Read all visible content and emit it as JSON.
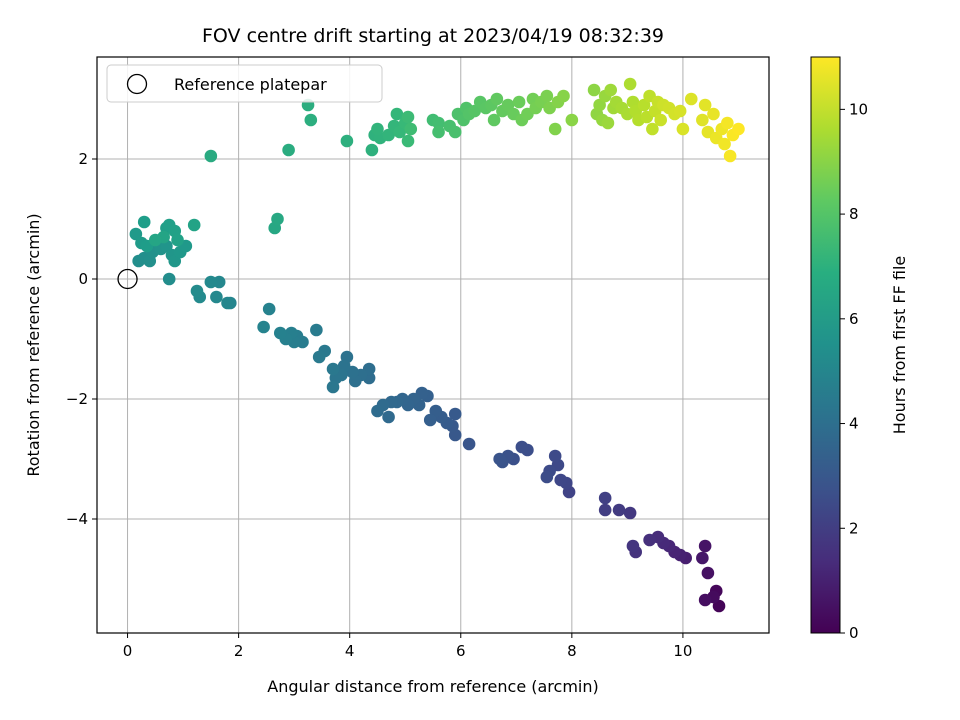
{
  "chart_data": {
    "type": "scatter",
    "title": "FOV centre drift starting at 2023/04/19 08:32:39",
    "xlabel": "Angular distance from reference (arcmin)",
    "ylabel": "Rotation from reference (arcmin)",
    "xlim": [
      -0.55,
      11.55
    ],
    "ylim": [
      -5.9,
      3.7
    ],
    "xticks": [
      0,
      2,
      4,
      6,
      8,
      10
    ],
    "yticks": [
      -4,
      -2,
      0,
      2
    ],
    "xtick_labels": [
      "0",
      "2",
      "4",
      "6",
      "8",
      "10"
    ],
    "ytick_labels": [
      "−4",
      "−2",
      "0",
      "2"
    ],
    "grid": true,
    "legend": {
      "position": "top-left",
      "entries": [
        "Reference platepar"
      ]
    },
    "reference_point": {
      "x": 0,
      "y": 0
    },
    "colorbar": {
      "label": "Hours from first FF file",
      "range": [
        0,
        11
      ],
      "ticks": [
        0,
        2,
        4,
        6,
        8,
        10
      ],
      "tick_labels": [
        "0",
        "2",
        "4",
        "6",
        "8",
        "10"
      ],
      "colormap": "viridis"
    },
    "points": [
      {
        "x": 10.65,
        "y": -5.45,
        "t": 0.1
      },
      {
        "x": 10.6,
        "y": -5.2,
        "t": 0.2
      },
      {
        "x": 10.55,
        "y": -5.3,
        "t": 0.3
      },
      {
        "x": 10.4,
        "y": -5.35,
        "t": 0.4
      },
      {
        "x": 10.45,
        "y": -4.9,
        "t": 0.5
      },
      {
        "x": 10.4,
        "y": -4.45,
        "t": 0.6
      },
      {
        "x": 10.35,
        "y": -4.65,
        "t": 0.7
      },
      {
        "x": 10.05,
        "y": -4.65,
        "t": 0.9
      },
      {
        "x": 9.95,
        "y": -4.6,
        "t": 1.0
      },
      {
        "x": 9.85,
        "y": -4.55,
        "t": 1.1
      },
      {
        "x": 9.75,
        "y": -4.45,
        "t": 1.2
      },
      {
        "x": 9.65,
        "y": -4.4,
        "t": 1.3
      },
      {
        "x": 9.55,
        "y": -4.3,
        "t": 1.4
      },
      {
        "x": 9.4,
        "y": -4.35,
        "t": 1.5
      },
      {
        "x": 9.15,
        "y": -4.55,
        "t": 1.6
      },
      {
        "x": 9.1,
        "y": -4.45,
        "t": 1.7
      },
      {
        "x": 9.05,
        "y": -3.9,
        "t": 1.8
      },
      {
        "x": 8.85,
        "y": -3.85,
        "t": 1.9
      },
      {
        "x": 8.6,
        "y": -3.85,
        "t": 2.0
      },
      {
        "x": 8.6,
        "y": -3.65,
        "t": 2.1
      },
      {
        "x": 7.95,
        "y": -3.55,
        "t": 2.2
      },
      {
        "x": 7.9,
        "y": -3.4,
        "t": 2.3
      },
      {
        "x": 7.8,
        "y": -3.35,
        "t": 2.35
      },
      {
        "x": 7.75,
        "y": -3.1,
        "t": 2.4
      },
      {
        "x": 7.7,
        "y": -2.95,
        "t": 2.45
      },
      {
        "x": 7.6,
        "y": -3.2,
        "t": 2.5
      },
      {
        "x": 7.55,
        "y": -3.3,
        "t": 2.55
      },
      {
        "x": 7.2,
        "y": -2.85,
        "t": 2.6
      },
      {
        "x": 7.1,
        "y": -2.8,
        "t": 2.65
      },
      {
        "x": 6.95,
        "y": -3.0,
        "t": 2.7
      },
      {
        "x": 6.85,
        "y": -2.95,
        "t": 2.75
      },
      {
        "x": 6.75,
        "y": -3.05,
        "t": 2.8
      },
      {
        "x": 6.7,
        "y": -3.0,
        "t": 2.85
      },
      {
        "x": 6.15,
        "y": -2.75,
        "t": 2.9
      },
      {
        "x": 5.9,
        "y": -2.6,
        "t": 3.0
      },
      {
        "x": 5.85,
        "y": -2.45,
        "t": 3.05
      },
      {
        "x": 5.9,
        "y": -2.25,
        "t": 3.1
      },
      {
        "x": 5.75,
        "y": -2.4,
        "t": 3.15
      },
      {
        "x": 5.65,
        "y": -2.3,
        "t": 3.2
      },
      {
        "x": 5.55,
        "y": -2.2,
        "t": 3.25
      },
      {
        "x": 5.45,
        "y": -2.35,
        "t": 3.3
      },
      {
        "x": 5.4,
        "y": -1.95,
        "t": 3.35
      },
      {
        "x": 5.3,
        "y": -1.9,
        "t": 3.4
      },
      {
        "x": 5.25,
        "y": -2.1,
        "t": 3.45
      },
      {
        "x": 5.15,
        "y": -2.0,
        "t": 3.5
      },
      {
        "x": 5.05,
        "y": -2.1,
        "t": 3.55
      },
      {
        "x": 4.95,
        "y": -2.0,
        "t": 3.6
      },
      {
        "x": 4.85,
        "y": -2.05,
        "t": 3.65
      },
      {
        "x": 4.75,
        "y": -2.05,
        "t": 3.7
      },
      {
        "x": 4.7,
        "y": -2.3,
        "t": 3.75
      },
      {
        "x": 4.6,
        "y": -2.1,
        "t": 3.8
      },
      {
        "x": 4.5,
        "y": -2.2,
        "t": 3.85
      },
      {
        "x": 4.35,
        "y": -1.65,
        "t": 3.9
      },
      {
        "x": 4.35,
        "y": -1.5,
        "t": 3.95
      },
      {
        "x": 4.2,
        "y": -1.6,
        "t": 4.0
      },
      {
        "x": 4.1,
        "y": -1.7,
        "t": 4.05
      },
      {
        "x": 4.05,
        "y": -1.55,
        "t": 4.1
      },
      {
        "x": 3.95,
        "y": -1.3,
        "t": 4.15
      },
      {
        "x": 3.9,
        "y": -1.45,
        "t": 4.2
      },
      {
        "x": 3.85,
        "y": -1.6,
        "t": 4.25
      },
      {
        "x": 3.75,
        "y": -1.65,
        "t": 4.3
      },
      {
        "x": 3.7,
        "y": -1.8,
        "t": 4.35
      },
      {
        "x": 3.7,
        "y": -1.5,
        "t": 4.4
      },
      {
        "x": 3.55,
        "y": -1.2,
        "t": 4.45
      },
      {
        "x": 3.45,
        "y": -1.3,
        "t": 4.5
      },
      {
        "x": 3.4,
        "y": -0.85,
        "t": 4.55
      },
      {
        "x": 3.15,
        "y": -1.05,
        "t": 4.6
      },
      {
        "x": 3.05,
        "y": -0.95,
        "t": 4.65
      },
      {
        "x": 3.0,
        "y": -1.05,
        "t": 4.7
      },
      {
        "x": 2.95,
        "y": -0.9,
        "t": 4.75
      },
      {
        "x": 2.85,
        "y": -1.0,
        "t": 4.8
      },
      {
        "x": 2.75,
        "y": -0.9,
        "t": 4.85
      },
      {
        "x": 2.55,
        "y": -0.5,
        "t": 4.9
      },
      {
        "x": 2.45,
        "y": -0.8,
        "t": 4.95
      },
      {
        "x": 1.85,
        "y": -0.4,
        "t": 5.0
      },
      {
        "x": 1.8,
        "y": -0.4,
        "t": 5.05
      },
      {
        "x": 1.65,
        "y": -0.05,
        "t": 5.1
      },
      {
        "x": 1.6,
        "y": -0.3,
        "t": 5.15
      },
      {
        "x": 1.5,
        "y": -0.05,
        "t": 5.2
      },
      {
        "x": 1.3,
        "y": -0.3,
        "t": 5.25
      },
      {
        "x": 1.25,
        "y": -0.2,
        "t": 5.3
      },
      {
        "x": 0.75,
        "y": 0.0,
        "t": 5.35
      },
      {
        "x": 0.2,
        "y": 0.3,
        "t": 5.4
      },
      {
        "x": 0.3,
        "y": 0.35,
        "t": 5.45
      },
      {
        "x": 0.4,
        "y": 0.3,
        "t": 5.5
      },
      {
        "x": 0.45,
        "y": 0.45,
        "t": 5.55
      },
      {
        "x": 0.55,
        "y": 0.6,
        "t": 5.6
      },
      {
        "x": 0.6,
        "y": 0.5,
        "t": 5.65
      },
      {
        "x": 0.7,
        "y": 0.55,
        "t": 5.7
      },
      {
        "x": 0.8,
        "y": 0.4,
        "t": 5.75
      },
      {
        "x": 0.85,
        "y": 0.3,
        "t": 5.8
      },
      {
        "x": 0.95,
        "y": 0.45,
        "t": 5.85
      },
      {
        "x": 1.05,
        "y": 0.55,
        "t": 5.9
      },
      {
        "x": 0.15,
        "y": 0.75,
        "t": 5.95
      },
      {
        "x": 0.25,
        "y": 0.6,
        "t": 6.0
      },
      {
        "x": 0.35,
        "y": 0.55,
        "t": 6.05
      },
      {
        "x": 0.3,
        "y": 0.95,
        "t": 6.1
      },
      {
        "x": 0.7,
        "y": 0.85,
        "t": 6.15
      },
      {
        "x": 0.75,
        "y": 0.9,
        "t": 6.2
      },
      {
        "x": 0.85,
        "y": 0.8,
        "t": 6.25
      },
      {
        "x": 0.9,
        "y": 0.65,
        "t": 6.3
      },
      {
        "x": 1.2,
        "y": 0.9,
        "t": 6.35
      },
      {
        "x": 0.65,
        "y": 0.7,
        "t": 6.4
      },
      {
        "x": 0.5,
        "y": 0.65,
        "t": 6.45
      },
      {
        "x": 2.65,
        "y": 0.85,
        "t": 6.55
      },
      {
        "x": 2.7,
        "y": 1.0,
        "t": 6.6
      },
      {
        "x": 1.5,
        "y": 2.05,
        "t": 6.7
      },
      {
        "x": 2.9,
        "y": 2.15,
        "t": 6.8
      },
      {
        "x": 3.25,
        "y": 2.9,
        "t": 6.85
      },
      {
        "x": 3.3,
        "y": 2.65,
        "t": 6.9
      },
      {
        "x": 3.95,
        "y": 2.3,
        "t": 6.95
      },
      {
        "x": 4.4,
        "y": 2.15,
        "t": 7.0
      },
      {
        "x": 4.45,
        "y": 2.4,
        "t": 7.05
      },
      {
        "x": 4.55,
        "y": 2.35,
        "t": 7.1
      },
      {
        "x": 4.5,
        "y": 2.5,
        "t": 7.15
      },
      {
        "x": 4.7,
        "y": 2.4,
        "t": 7.2
      },
      {
        "x": 4.8,
        "y": 2.55,
        "t": 7.25
      },
      {
        "x": 4.85,
        "y": 2.75,
        "t": 7.3
      },
      {
        "x": 4.9,
        "y": 2.45,
        "t": 7.35
      },
      {
        "x": 5.0,
        "y": 2.6,
        "t": 7.4
      },
      {
        "x": 5.05,
        "y": 2.3,
        "t": 7.45
      },
      {
        "x": 5.05,
        "y": 2.7,
        "t": 7.5
      },
      {
        "x": 5.1,
        "y": 2.5,
        "t": 7.55
      },
      {
        "x": 5.5,
        "y": 2.65,
        "t": 7.6
      },
      {
        "x": 5.6,
        "y": 2.6,
        "t": 7.65
      },
      {
        "x": 5.6,
        "y": 2.45,
        "t": 7.7
      },
      {
        "x": 5.8,
        "y": 2.55,
        "t": 7.75
      },
      {
        "x": 5.9,
        "y": 2.45,
        "t": 7.8
      },
      {
        "x": 5.95,
        "y": 2.75,
        "t": 7.85
      },
      {
        "x": 6.05,
        "y": 2.65,
        "t": 7.9
      },
      {
        "x": 6.1,
        "y": 2.85,
        "t": 7.95
      },
      {
        "x": 6.15,
        "y": 2.75,
        "t": 8.0
      },
      {
        "x": 6.25,
        "y": 2.8,
        "t": 8.05
      },
      {
        "x": 6.35,
        "y": 2.95,
        "t": 8.1
      },
      {
        "x": 6.45,
        "y": 2.85,
        "t": 8.15
      },
      {
        "x": 6.55,
        "y": 2.9,
        "t": 8.2
      },
      {
        "x": 6.6,
        "y": 2.65,
        "t": 8.25
      },
      {
        "x": 6.65,
        "y": 3.0,
        "t": 8.3
      },
      {
        "x": 6.75,
        "y": 2.8,
        "t": 8.35
      },
      {
        "x": 6.85,
        "y": 2.9,
        "t": 8.4
      },
      {
        "x": 6.95,
        "y": 2.75,
        "t": 8.45
      },
      {
        "x": 7.05,
        "y": 2.95,
        "t": 8.5
      },
      {
        "x": 7.1,
        "y": 2.65,
        "t": 8.55
      },
      {
        "x": 7.2,
        "y": 2.75,
        "t": 8.6
      },
      {
        "x": 7.3,
        "y": 3.0,
        "t": 8.65
      },
      {
        "x": 7.35,
        "y": 2.85,
        "t": 8.7
      },
      {
        "x": 7.45,
        "y": 2.95,
        "t": 8.75
      },
      {
        "x": 7.55,
        "y": 3.05,
        "t": 8.8
      },
      {
        "x": 7.6,
        "y": 2.85,
        "t": 8.85
      },
      {
        "x": 7.7,
        "y": 2.5,
        "t": 8.9
      },
      {
        "x": 7.75,
        "y": 2.95,
        "t": 8.95
      },
      {
        "x": 7.85,
        "y": 3.05,
        "t": 9.0
      },
      {
        "x": 8.0,
        "y": 2.65,
        "t": 9.05
      },
      {
        "x": 8.4,
        "y": 3.15,
        "t": 9.1
      },
      {
        "x": 8.45,
        "y": 2.75,
        "t": 9.15
      },
      {
        "x": 8.5,
        "y": 2.9,
        "t": 9.2
      },
      {
        "x": 8.55,
        "y": 2.65,
        "t": 9.25
      },
      {
        "x": 8.6,
        "y": 3.05,
        "t": 9.3
      },
      {
        "x": 8.65,
        "y": 2.6,
        "t": 9.35
      },
      {
        "x": 8.7,
        "y": 3.15,
        "t": 9.4
      },
      {
        "x": 8.75,
        "y": 2.85,
        "t": 9.45
      },
      {
        "x": 8.8,
        "y": 2.95,
        "t": 9.5
      },
      {
        "x": 8.9,
        "y": 2.85,
        "t": 9.55
      },
      {
        "x": 9.0,
        "y": 2.75,
        "t": 9.6
      },
      {
        "x": 9.05,
        "y": 3.25,
        "t": 9.65
      },
      {
        "x": 9.1,
        "y": 2.95,
        "t": 9.7
      },
      {
        "x": 9.15,
        "y": 2.8,
        "t": 9.75
      },
      {
        "x": 9.2,
        "y": 2.65,
        "t": 9.8
      },
      {
        "x": 9.3,
        "y": 2.9,
        "t": 9.85
      },
      {
        "x": 9.35,
        "y": 2.7,
        "t": 9.9
      },
      {
        "x": 9.4,
        "y": 3.05,
        "t": 9.95
      },
      {
        "x": 9.45,
        "y": 2.5,
        "t": 10.0
      },
      {
        "x": 9.5,
        "y": 2.8,
        "t": 10.05
      },
      {
        "x": 9.55,
        "y": 2.95,
        "t": 10.1
      },
      {
        "x": 9.6,
        "y": 2.65,
        "t": 10.15
      },
      {
        "x": 9.65,
        "y": 2.9,
        "t": 10.2
      },
      {
        "x": 9.75,
        "y": 2.85,
        "t": 10.25
      },
      {
        "x": 9.85,
        "y": 2.75,
        "t": 10.3
      },
      {
        "x": 9.95,
        "y": 2.8,
        "t": 10.35
      },
      {
        "x": 10.0,
        "y": 2.5,
        "t": 10.4
      },
      {
        "x": 10.15,
        "y": 3.0,
        "t": 10.45
      },
      {
        "x": 10.35,
        "y": 2.65,
        "t": 10.5
      },
      {
        "x": 10.4,
        "y": 2.9,
        "t": 10.55
      },
      {
        "x": 10.45,
        "y": 2.45,
        "t": 10.6
      },
      {
        "x": 10.55,
        "y": 2.75,
        "t": 10.65
      },
      {
        "x": 10.6,
        "y": 2.35,
        "t": 10.7
      },
      {
        "x": 10.7,
        "y": 2.5,
        "t": 10.75
      },
      {
        "x": 10.75,
        "y": 2.25,
        "t": 10.8
      },
      {
        "x": 10.8,
        "y": 2.6,
        "t": 10.85
      },
      {
        "x": 10.85,
        "y": 2.05,
        "t": 10.9
      },
      {
        "x": 10.9,
        "y": 2.4,
        "t": 10.95
      },
      {
        "x": 11.0,
        "y": 2.5,
        "t": 11.0
      }
    ]
  }
}
